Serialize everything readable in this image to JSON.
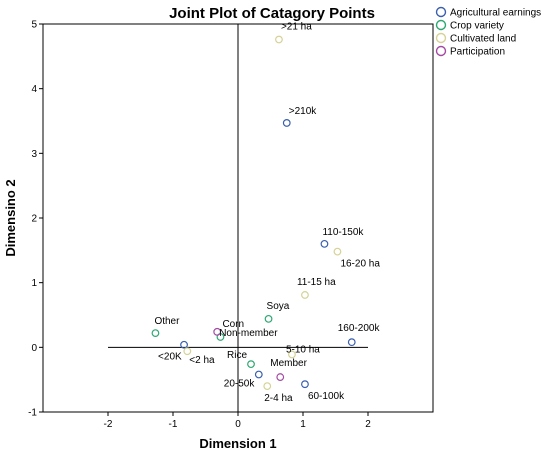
{
  "chart_data": {
    "type": "scatter",
    "title": "Joint Plot of Catagory Points",
    "xlabel": "Dimension 1",
    "ylabel": "Dimensino 2",
    "xlim": [
      -3.0,
      3.0
    ],
    "ylim": [
      -1,
      5
    ],
    "xticks": [
      -2,
      -1,
      0,
      1,
      2
    ],
    "yticks": [
      -1,
      0,
      1,
      2,
      3,
      4,
      5
    ],
    "tick_labels_x": [
      "-2",
      "-1",
      "0",
      "1",
      "2"
    ],
    "tick_labels_y": [
      "-1",
      "0",
      "1",
      "2",
      "3",
      "4",
      "5"
    ],
    "grid": false,
    "legend_position": "top-right-outside",
    "series": [
      {
        "name": "Agricultural earnings",
        "color": "#3a5fae",
        "points": [
          {
            "label": ">210k",
            "x": 0.75,
            "y": 3.47
          },
          {
            "label": "110-150k",
            "x": 1.33,
            "y": 1.6
          },
          {
            "label": "160-200k",
            "x": 1.75,
            "y": 0.08
          },
          {
            "label": "<20K",
            "x": -0.83,
            "y": 0.04
          },
          {
            "label": "20-50k",
            "x": 0.32,
            "y": -0.42
          },
          {
            "label": "60-100k",
            "x": 1.03,
            "y": -0.57
          }
        ]
      },
      {
        "name": "Crop variety",
        "color": "#2ea872",
        "points": [
          {
            "label": "Other",
            "x": -1.27,
            "y": 0.22
          },
          {
            "label": "Corn",
            "x": -0.27,
            "y": 0.16
          },
          {
            "label": "Soya",
            "x": 0.47,
            "y": 0.44
          },
          {
            "label": "Rice",
            "x": 0.2,
            "y": -0.26
          }
        ]
      },
      {
        "name": "Cultivated land",
        "color": "#d6d295",
        "points": [
          {
            "label": ">21 ha",
            "x": 0.63,
            "y": 4.76
          },
          {
            "label": "16-20 ha",
            "x": 1.53,
            "y": 1.48
          },
          {
            "label": "11-15 ha",
            "x": 1.03,
            "y": 0.81
          },
          {
            "label": "5-10 ha",
            "x": 0.83,
            "y": -0.11
          },
          {
            "label": "<2 ha",
            "x": -0.78,
            "y": -0.06
          },
          {
            "label": "2-4 ha",
            "x": 0.45,
            "y": -0.6
          }
        ]
      },
      {
        "name": "Participation",
        "color": "#a44aa3",
        "points": [
          {
            "label": "Non-member",
            "x": -0.32,
            "y": 0.24
          },
          {
            "label": "Member",
            "x": 0.65,
            "y": -0.46
          }
        ]
      }
    ]
  }
}
